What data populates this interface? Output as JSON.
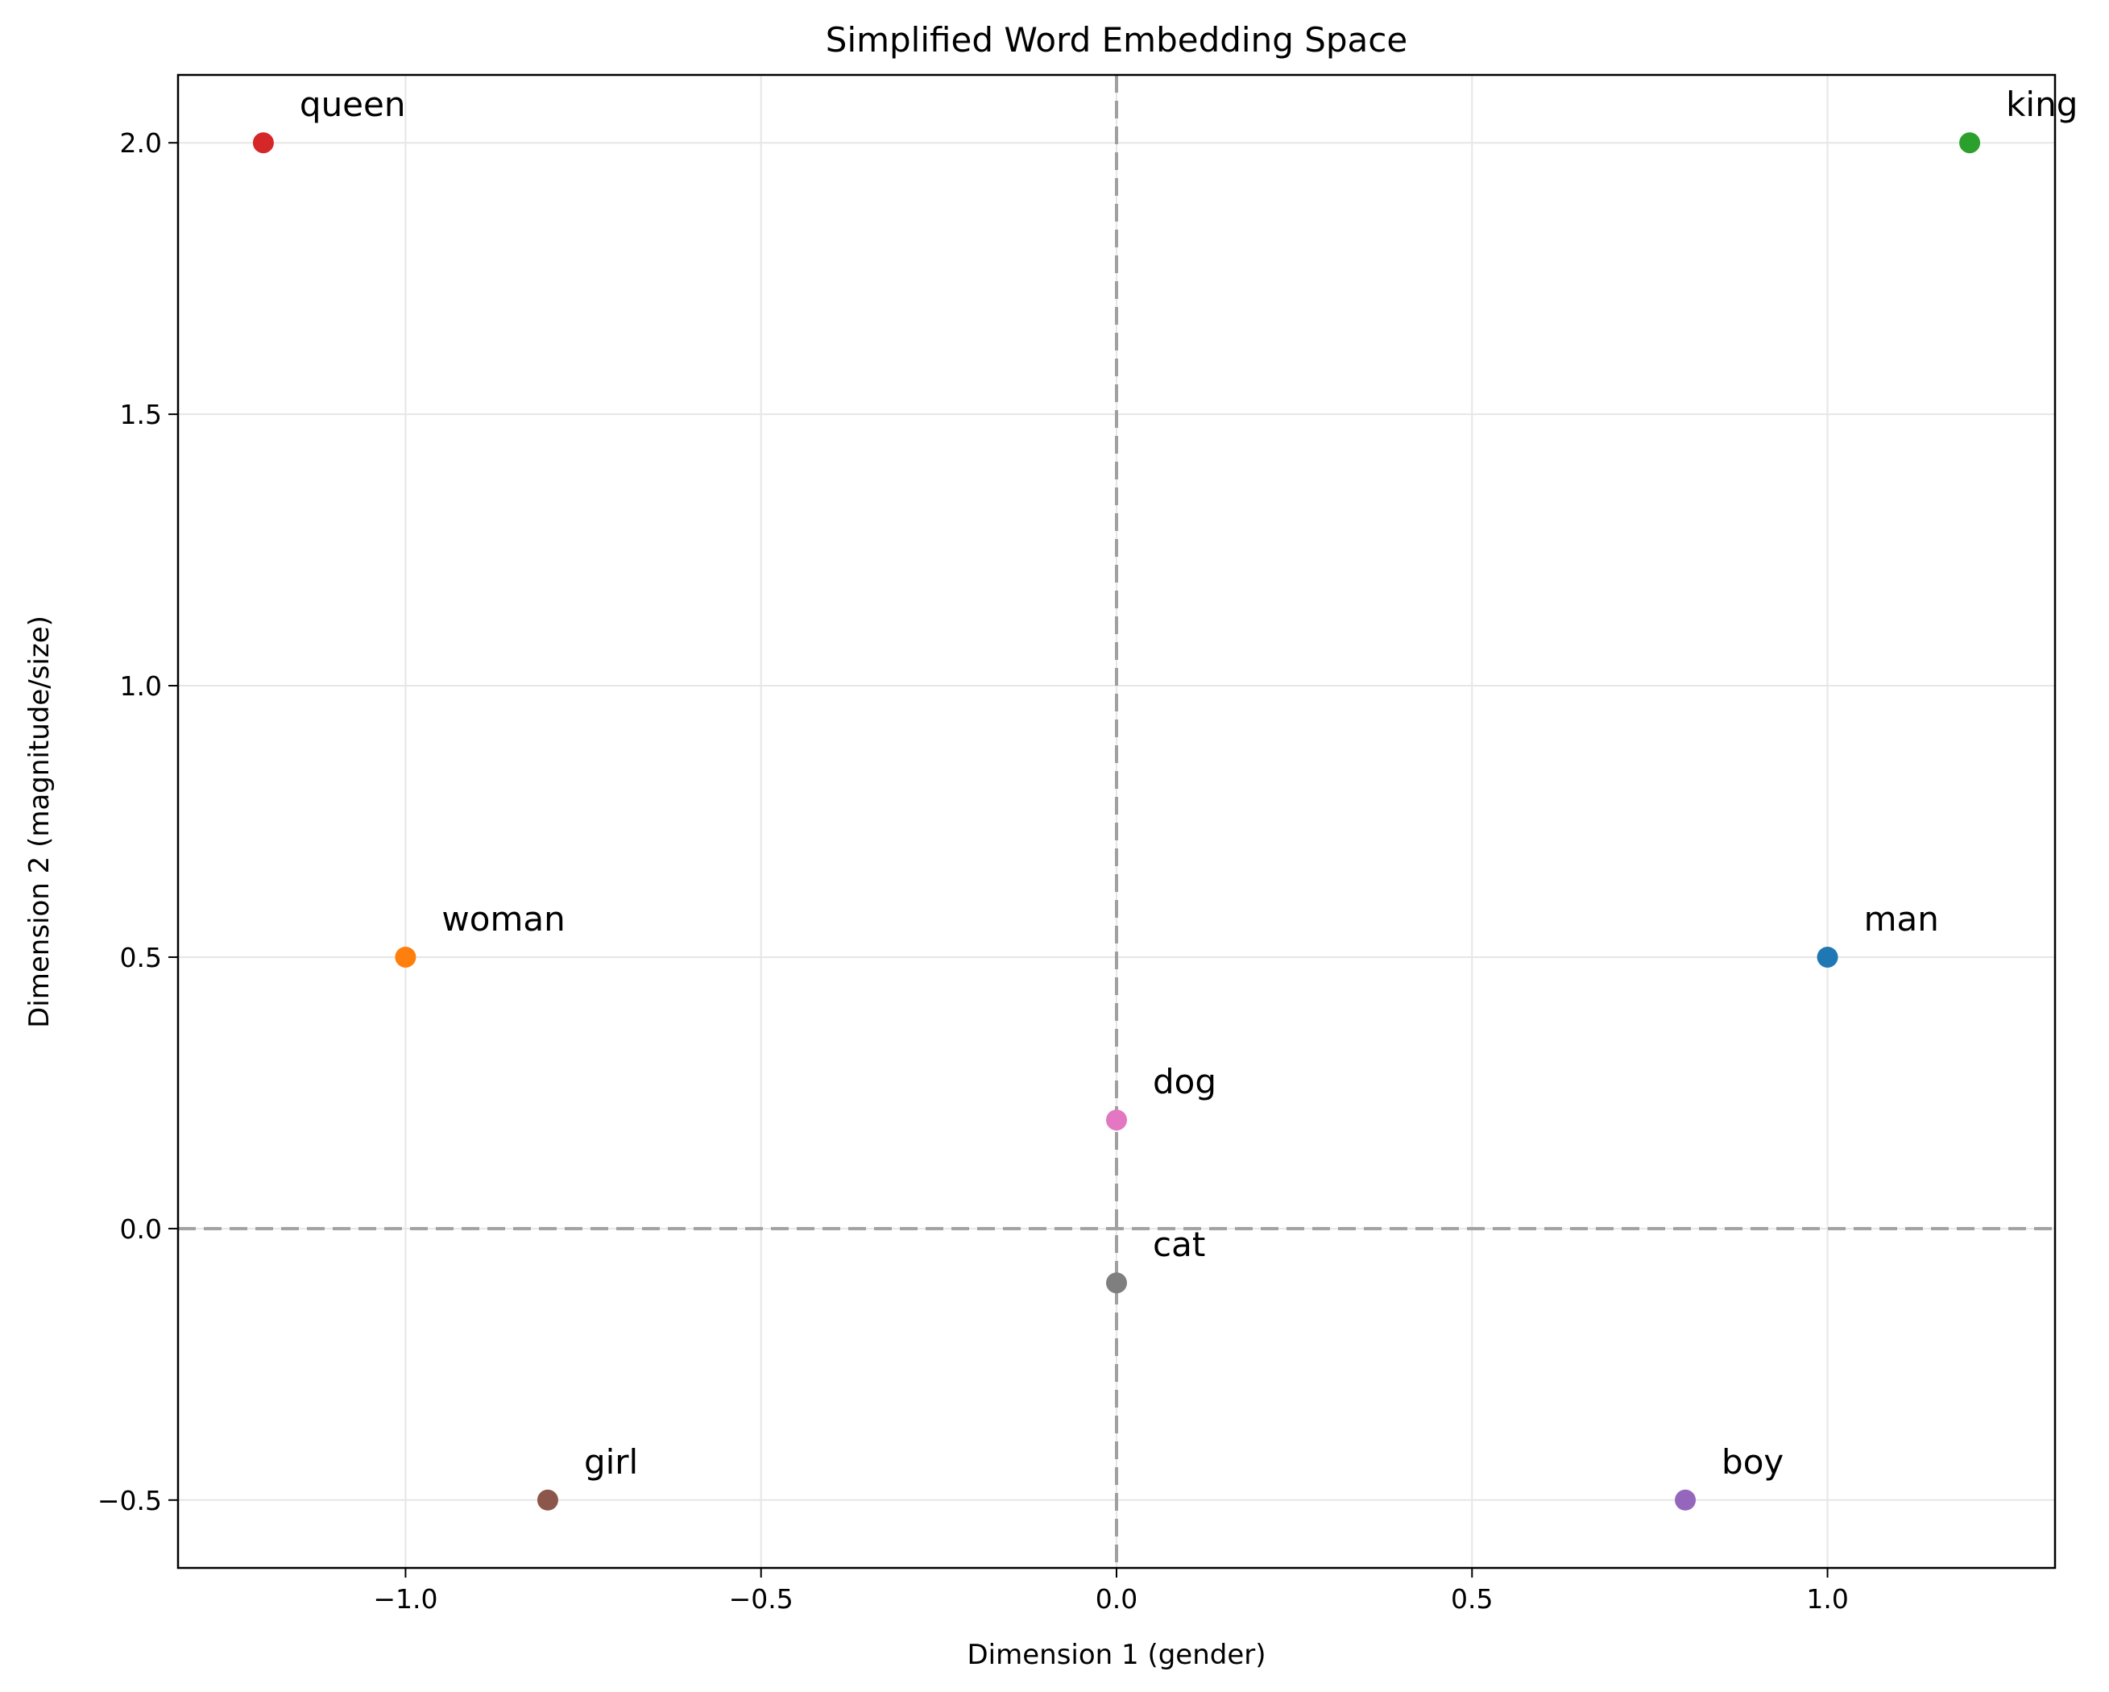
{
  "chart_data": {
    "type": "scatter",
    "title": "Simplified Word Embedding Space",
    "xlabel": "Dimension 1 (gender)",
    "ylabel": "Dimension 2 (magnitude/size)",
    "xlim": [
      -1.32,
      1.32
    ],
    "ylim": [
      -0.625,
      2.125
    ],
    "xticks": [
      -1.0,
      -0.5,
      0.0,
      0.5,
      1.0
    ],
    "yticks": [
      -0.5,
      0.0,
      0.5,
      1.0,
      1.5,
      2.0
    ],
    "xtick_labels": [
      "−1.0",
      "−0.5",
      "0.0",
      "0.5",
      "1.0"
    ],
    "ytick_labels": [
      "−0.5",
      "0.0",
      "0.5",
      "1.0",
      "1.5",
      "2.0"
    ],
    "grid": true,
    "reference_lines": {
      "x": 0,
      "y": 0,
      "style": "dashed"
    },
    "points": [
      {
        "label": "man",
        "x": 1.0,
        "y": 0.5,
        "color": "#1f77b4"
      },
      {
        "label": "woman",
        "x": -1.0,
        "y": 0.5,
        "color": "#ff7f0e"
      },
      {
        "label": "king",
        "x": 1.2,
        "y": 2.0,
        "color": "#2ca02c"
      },
      {
        "label": "queen",
        "x": -1.2,
        "y": 2.0,
        "color": "#d62728"
      },
      {
        "label": "boy",
        "x": 0.8,
        "y": -0.5,
        "color": "#9467bd"
      },
      {
        "label": "girl",
        "x": -0.8,
        "y": -0.5,
        "color": "#8c564b"
      },
      {
        "label": "dog",
        "x": 0.0,
        "y": 0.2,
        "color": "#e377c2"
      },
      {
        "label": "cat",
        "x": 0.0,
        "y": -0.1,
        "color": "#7f7f7f"
      }
    ]
  }
}
